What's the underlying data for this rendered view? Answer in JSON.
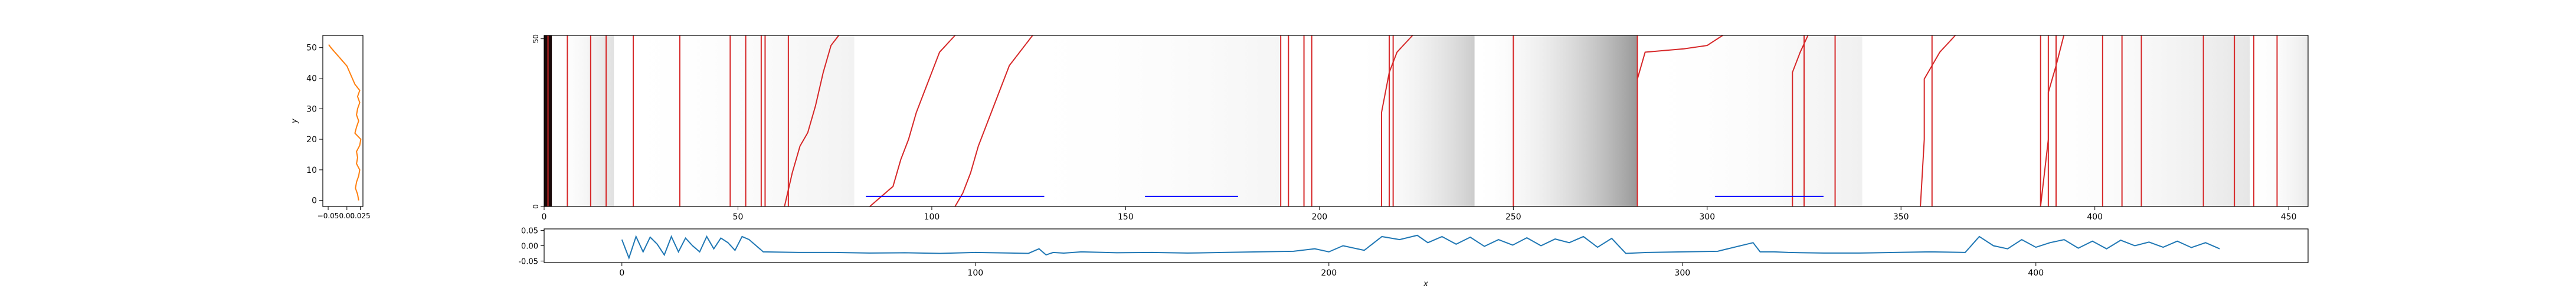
{
  "chart_data": [
    {
      "panel": "side-profile",
      "type": "line",
      "ylabel": "y",
      "xlabel": "",
      "xlim": [
        -0.045,
        0.03
      ],
      "ylim": [
        -2,
        54
      ],
      "x_ticks": [
        "−0.05",
        "0.00",
        "0.025"
      ],
      "y_ticks": [
        0,
        10,
        20,
        30,
        40,
        50
      ],
      "color": "#ff7f0e",
      "points": [
        [
          0.022,
          0
        ],
        [
          0.02,
          2
        ],
        [
          0.016,
          4
        ],
        [
          0.018,
          6
        ],
        [
          0.022,
          8
        ],
        [
          0.024,
          10
        ],
        [
          0.018,
          12
        ],
        [
          0.02,
          14
        ],
        [
          0.018,
          16
        ],
        [
          0.024,
          18
        ],
        [
          0.026,
          20
        ],
        [
          0.015,
          22
        ],
        [
          0.018,
          24
        ],
        [
          0.022,
          26
        ],
        [
          0.018,
          28
        ],
        [
          0.02,
          30
        ],
        [
          0.024,
          32
        ],
        [
          0.02,
          34
        ],
        [
          0.024,
          36
        ],
        [
          0.015,
          38
        ],
        [
          0.01,
          40
        ],
        [
          0.005,
          42
        ],
        [
          0.0,
          44
        ],
        [
          -0.01,
          46
        ],
        [
          -0.02,
          48
        ],
        [
          -0.03,
          50
        ],
        [
          -0.034,
          51
        ]
      ]
    },
    {
      "panel": "main-heatmap",
      "type": "heatmap",
      "xlim": [
        0,
        455
      ],
      "ylim": [
        0,
        51
      ],
      "x_ticks": [
        0,
        50,
        100,
        150,
        200,
        250,
        300,
        350,
        400,
        450
      ],
      "y_ticks": [
        0,
        50
      ],
      "grid": false,
      "colormap": "greys",
      "shading_bands": [
        {
          "x0": 0,
          "x1": 2,
          "level": 1.0
        },
        {
          "x0": 2,
          "x1": 18,
          "level": 0.12
        },
        {
          "x0": 18,
          "x1": 80,
          "level": 0.05
        },
        {
          "x0": 120,
          "x1": 190,
          "level": 0.04
        },
        {
          "x0": 210,
          "x1": 240,
          "level": 0.2
        },
        {
          "x0": 240,
          "x1": 282,
          "level": 0.4
        },
        {
          "x0": 282,
          "x1": 340,
          "level": 0.06
        },
        {
          "x0": 380,
          "x1": 440,
          "level": 0.1
        },
        {
          "x0": 440,
          "x1": 455,
          "level": 0.08
        }
      ],
      "series_vertical": {
        "color": "#d62728",
        "x_positions": [
          1,
          6,
          12,
          16,
          23,
          35,
          48,
          52,
          56,
          57,
          63,
          190,
          192,
          196,
          198,
          218,
          219,
          250,
          282,
          325,
          333,
          358,
          386,
          388,
          390,
          402,
          407,
          412,
          428,
          436,
          441,
          447
        ]
      },
      "series_curves": {
        "color": "#d62728",
        "curves": [
          [
            [
              62,
              0
            ],
            [
              64,
              10
            ],
            [
              66,
              18
            ],
            [
              68,
              22
            ],
            [
              70,
              30
            ],
            [
              72,
              40
            ],
            [
              74,
              48
            ],
            [
              76,
              51
            ]
          ],
          [
            [
              84,
              0
            ],
            [
              90,
              6
            ],
            [
              92,
              14
            ],
            [
              94,
              20
            ],
            [
              96,
              28
            ],
            [
              98,
              34
            ],
            [
              100,
              40
            ],
            [
              102,
              46
            ],
            [
              106,
              51
            ]
          ],
          [
            [
              106,
              0
            ],
            [
              108,
              4
            ],
            [
              110,
              10
            ],
            [
              112,
              18
            ],
            [
              114,
              24
            ],
            [
              116,
              30
            ],
            [
              118,
              36
            ],
            [
              120,
              42
            ],
            [
              124,
              48
            ],
            [
              126,
              51
            ]
          ],
          [
            [
              216,
              0
            ],
            [
              216,
              14
            ],
            [
              216,
              28
            ],
            [
              218,
              40
            ],
            [
              220,
              46
            ],
            [
              224,
              51
            ]
          ],
          [
            [
              282,
              38
            ],
            [
              284,
              46
            ],
            [
              294,
              47
            ],
            [
              300,
              48
            ],
            [
              304,
              51
            ]
          ],
          [
            [
              322,
              0
            ],
            [
              322,
              20
            ],
            [
              322,
              40
            ],
            [
              324,
              46
            ],
            [
              326,
              51
            ]
          ],
          [
            [
              386,
              0
            ],
            [
              388,
              20
            ],
            [
              388,
              34
            ],
            [
              390,
              42
            ],
            [
              392,
              51
            ]
          ],
          [
            [
              355,
              0
            ],
            [
              356,
              20
            ],
            [
              356,
              38
            ],
            [
              360,
              46
            ],
            [
              364,
              51
            ]
          ]
        ]
      },
      "series_horizontal": {
        "color": "#0000ff",
        "segments": [
          {
            "x0": 83,
            "x1": 129,
            "y": 3
          },
          {
            "x0": 155,
            "x1": 179,
            "y": 3
          },
          {
            "x0": 302,
            "x1": 330,
            "y": 3
          }
        ]
      }
    },
    {
      "panel": "bottom-profile",
      "type": "line",
      "xlabel": "x",
      "ylabel": "",
      "xlim": [
        -22,
        477
      ],
      "ylim": [
        -0.055,
        0.055
      ],
      "x_ticks": [
        0,
        100,
        200,
        300,
        400
      ],
      "y_ticks": [
        "-0.05",
        "0.00",
        "0.05"
      ],
      "color": "#1f77b4",
      "x": [
        0,
        2,
        4,
        6,
        8,
        10,
        12,
        14,
        16,
        18,
        20,
        22,
        24,
        26,
        28,
        30,
        32,
        34,
        36,
        40,
        50,
        60,
        70,
        80,
        90,
        100,
        110,
        115,
        118,
        120,
        122,
        125,
        130,
        140,
        150,
        160,
        170,
        180,
        190,
        196,
        200,
        204,
        210,
        215,
        220,
        225,
        228,
        232,
        236,
        240,
        244,
        248,
        252,
        256,
        260,
        264,
        268,
        272,
        276,
        280,
        284,
        290,
        300,
        310,
        320,
        322,
        326,
        330,
        340,
        350,
        360,
        370,
        380,
        384,
        388,
        392,
        396,
        400,
        404,
        408,
        412,
        416,
        420,
        424,
        428,
        432,
        436,
        440,
        444,
        448,
        452
      ],
      "y": [
        0.02,
        -0.04,
        0.03,
        -0.02,
        0.028,
        0.005,
        -0.03,
        0.03,
        -0.02,
        0.025,
        0.0,
        -0.02,
        0.03,
        -0.01,
        0.025,
        0.01,
        -0.015,
        0.03,
        0.02,
        -0.02,
        -0.022,
        -0.022,
        -0.024,
        -0.023,
        -0.025,
        -0.022,
        -0.024,
        -0.025,
        -0.01,
        -0.03,
        -0.022,
        -0.024,
        -0.02,
        -0.023,
        -0.022,
        -0.024,
        -0.022,
        -0.02,
        -0.018,
        -0.01,
        -0.02,
        0.0,
        -0.015,
        0.03,
        0.02,
        0.034,
        0.01,
        0.03,
        0.005,
        0.028,
        -0.002,
        0.02,
        0.002,
        0.026,
        0.0,
        0.022,
        0.01,
        0.03,
        -0.005,
        0.024,
        -0.025,
        -0.022,
        -0.02,
        -0.018,
        0.01,
        -0.02,
        -0.02,
        -0.022,
        -0.024,
        -0.024,
        -0.022,
        -0.02,
        -0.022,
        0.03,
        0.0,
        -0.01,
        0.02,
        -0.005,
        0.01,
        0.02,
        -0.008,
        0.015,
        -0.01,
        0.018,
        0.0,
        0.012,
        -0.005,
        0.015,
        -0.006,
        0.01,
        -0.01
      ]
    }
  ]
}
